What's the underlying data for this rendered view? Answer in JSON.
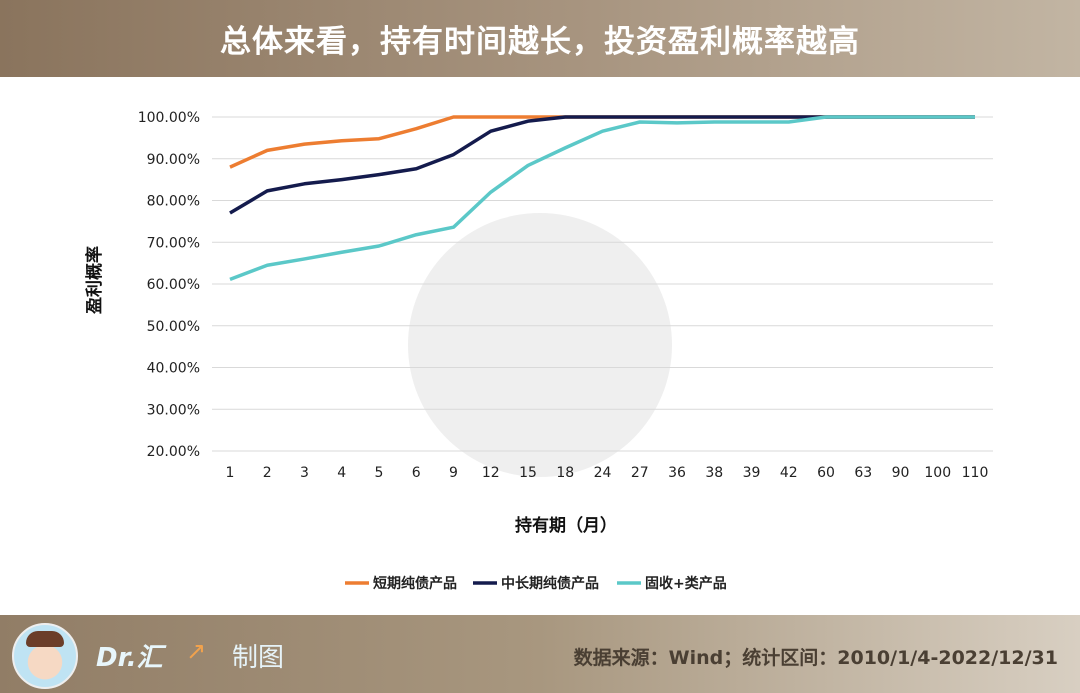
{
  "header": {
    "title": "总体来看，持有时间越长，投资盈利概率越高"
  },
  "footer": {
    "brand": "Dr.汇",
    "made": "制图",
    "source": "数据来源：Wind；统计区间：2010/1/4-2022/12/31"
  },
  "chart_data": {
    "type": "line",
    "title": "",
    "xlabel": "持有期（月）",
    "ylabel": "盈利概率",
    "categories": [
      "1",
      "2",
      "3",
      "4",
      "5",
      "6",
      "9",
      "12",
      "15",
      "18",
      "24",
      "27",
      "36",
      "38",
      "39",
      "42",
      "60",
      "63",
      "90",
      "100",
      "110"
    ],
    "ylim": [
      20,
      100
    ],
    "yticks": [
      "20.00%",
      "30.00%",
      "40.00%",
      "50.00%",
      "60.00%",
      "70.00%",
      "80.00%",
      "90.00%",
      "100.00%"
    ],
    "grid": true,
    "legend": "bottom",
    "series": [
      {
        "name": "短期纯债产品",
        "color": "#ed7d31",
        "values": [
          88,
          92,
          93.5,
          94.3,
          94.8,
          97.2,
          100,
          100,
          100,
          100,
          100,
          100,
          100,
          100,
          100,
          100,
          100,
          100,
          100,
          100,
          100
        ]
      },
      {
        "name": "中长期纯债产品",
        "color": "#141b4d",
        "values": [
          77,
          82.3,
          84,
          85,
          86.2,
          87.6,
          91,
          96.6,
          99,
          100,
          100,
          100,
          100,
          100,
          100,
          100,
          100,
          100,
          100,
          100,
          100
        ]
      },
      {
        "name": "固收+类产品",
        "color": "#5bc8c8",
        "values": [
          61.1,
          64.5,
          66,
          67.6,
          69.1,
          71.8,
          73.6,
          82,
          88.4,
          92.6,
          96.6,
          98.8,
          98.6,
          98.8,
          98.8,
          98.8,
          100,
          100,
          100,
          100,
          100
        ]
      }
    ]
  }
}
